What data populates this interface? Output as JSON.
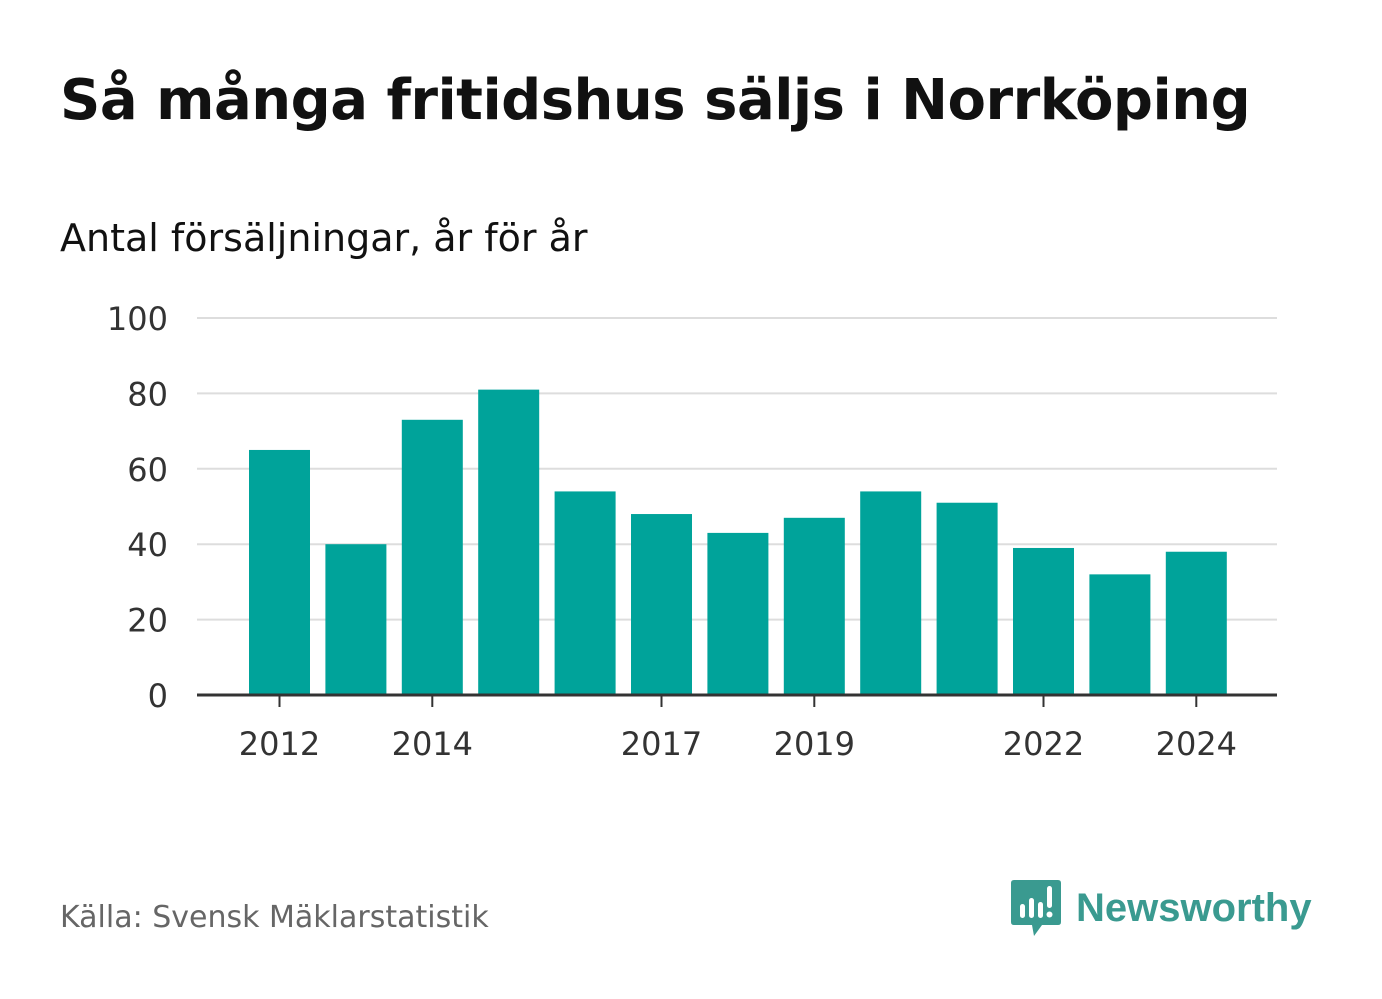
{
  "title": "Så många fritidshus säljs i Norrköping",
  "subtitle": "Antal försäljningar, år för år",
  "source": "Källa: Svensk Mäklarstatistik",
  "brand": {
    "name": "Newsworthy",
    "icon": "newsworthy-bar-chart-logo-icon",
    "color": "#3a9a90"
  },
  "colors": {
    "bar": "#00a39a",
    "grid": "#dddddd",
    "axis": "#333333",
    "text": "#333333"
  },
  "chart_data": {
    "type": "bar",
    "categories": [
      "2012",
      "2013",
      "2014",
      "2015",
      "2016",
      "2017",
      "2018",
      "2019",
      "2020",
      "2021",
      "2022",
      "2023",
      "2024"
    ],
    "values": [
      65,
      40,
      73,
      81,
      54,
      48,
      43,
      47,
      54,
      51,
      39,
      32,
      38
    ],
    "x_tick_labels": [
      "2012",
      "2014",
      "2017",
      "2019",
      "2022",
      "2024"
    ],
    "y_ticks": [
      0,
      20,
      40,
      60,
      80,
      100
    ],
    "ylim": [
      0,
      100
    ],
    "grid": true,
    "legend": "none"
  }
}
